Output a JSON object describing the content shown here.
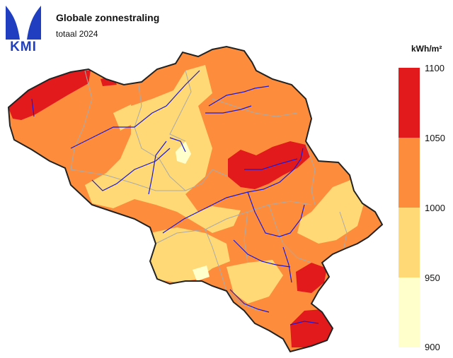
{
  "header": {
    "logo_text": "KMI",
    "title": "Globale zonnestraling",
    "subtitle": "totaal 2024"
  },
  "legend": {
    "unit": "kWh/m²",
    "classes": [
      {
        "min": 1050,
        "max": 1100,
        "color": "#e31a1c"
      },
      {
        "min": 1000,
        "max": 1050,
        "color": "#fd8d3c"
      },
      {
        "min": 950,
        "max": 1000,
        "color": "#fed976"
      },
      {
        "min": 900,
        "max": 950,
        "color": "#ffffcc"
      }
    ],
    "ticks": [
      "1100",
      "1050",
      "1000",
      "950",
      "900"
    ]
  },
  "map": {
    "borders_color": "#222222",
    "rivers_color": "#1a1adc",
    "provinces_color": "#aaaaaa"
  }
}
